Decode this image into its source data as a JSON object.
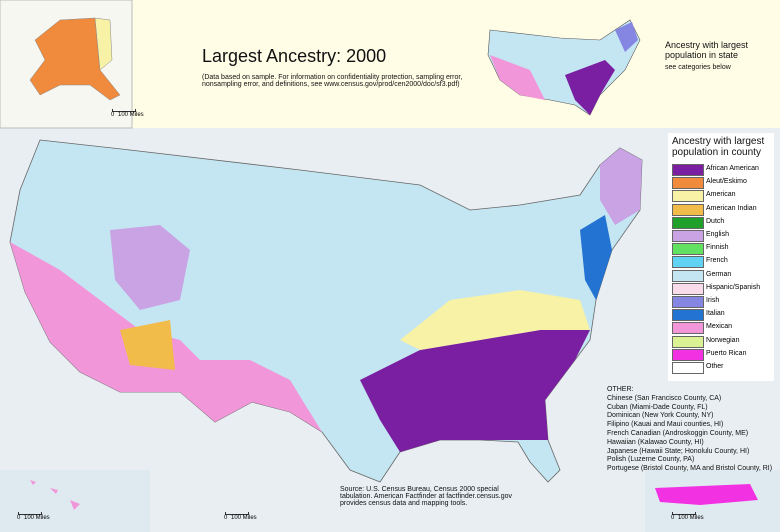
{
  "title": "Largest Ancestry: 2000",
  "note": "(Data based on sample. For information on confidentiality protection, sampling error, nonsampling error, and definitions, see www.census.gov/prod/cen2000/doc/sf3.pdf)",
  "state_inset": {
    "title": "Ancestry with largest population in state",
    "subtitle": "see categories below"
  },
  "legend": {
    "title": "Ancestry with largest population in county",
    "items": [
      {
        "name": "African American",
        "color": "#7b1fa2"
      },
      {
        "name": "Aleut/Eskimo",
        "color": "#f08a3c"
      },
      {
        "name": "American",
        "color": "#f8f2a6"
      },
      {
        "name": "American Indian",
        "color": "#f2bc4a"
      },
      {
        "name": "Dutch",
        "color": "#1fa02a"
      },
      {
        "name": "English",
        "color": "#c9a3e3"
      },
      {
        "name": "Finnish",
        "color": "#62e062"
      },
      {
        "name": "French",
        "color": "#62d2f2"
      },
      {
        "name": "German",
        "color": "#c4e6f2"
      },
      {
        "name": "Hispanic/Spanish",
        "color": "#f8dcea"
      },
      {
        "name": "Irish",
        "color": "#8585e2"
      },
      {
        "name": "Italian",
        "color": "#2273d2"
      },
      {
        "name": "Mexican",
        "color": "#f296da"
      },
      {
        "name": "Norwegian",
        "color": "#daf294"
      },
      {
        "name": "Puerto Rican",
        "color": "#f232e2"
      },
      {
        "name": "Other",
        "color": "#ffffff"
      }
    ]
  },
  "other": {
    "title": "OTHER:",
    "items": [
      "Chinese (San Francisco County, CA)",
      "Cuban (Miami-Dade County, FL)",
      "Dominican (New York County, NY)",
      "Filipino (Kauai and Maui counties, HI)",
      "French Canadian (Androskoggin County, ME)",
      "Hawaiian (Kalawao County, HI)",
      "Japanese (Hawaii State; Honolulu County, HI)",
      "Polish (Luzerne County, PA)",
      "Portugese (Bristol County, MA and Bristol County, RI)"
    ]
  },
  "source": "Source: U.S. Census Bureau, Census 2000 special tabulation. American Factfinder at factfinder.census.gov provides census data and mapping tools.",
  "scale_bar": {
    "zero": "0",
    "label": "100 Miles"
  }
}
